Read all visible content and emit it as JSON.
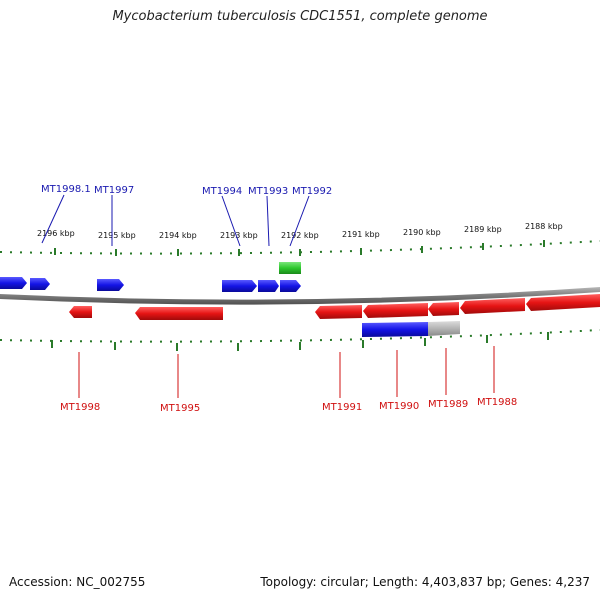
{
  "title": "Mycobacterium tuberculosis CDC1551, complete genome",
  "footer": {
    "accession": "Accession: NC_002755",
    "summary": "Topology: circular; Length: 4,403,837 bp; Genes: 4,237"
  },
  "colors": {
    "forward": "#1414e6",
    "reverse": "#e61414",
    "other": "#2ec82e",
    "pseudo": "#b4b4b4",
    "backbone": "#7a7a7a",
    "ticks": "#2a7a2a"
  },
  "ruler_ticks": [
    "2196 kbp",
    "2195 kbp",
    "2194 kbp",
    "2193 kbp",
    "2192 kbp",
    "2191 kbp",
    "2190 kbp",
    "2189 kbp",
    "2188 kbp"
  ],
  "genes_forward": [
    {
      "label": "MT1998.1"
    },
    {
      "label": "MT1997"
    },
    {
      "label": "MT1994"
    },
    {
      "label": "MT1993"
    },
    {
      "label": "MT1992"
    }
  ],
  "genes_reverse": [
    {
      "label": "MT1998"
    },
    {
      "label": "MT1995"
    },
    {
      "label": "MT1991"
    },
    {
      "label": "MT1990"
    },
    {
      "label": "MT1989"
    },
    {
      "label": "MT1988"
    }
  ]
}
